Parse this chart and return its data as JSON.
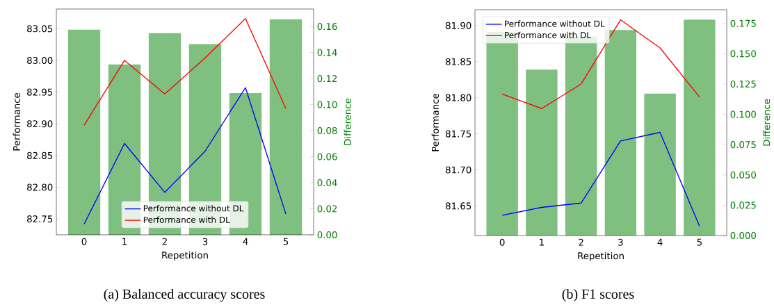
{
  "chart_data": [
    {
      "type": "line",
      "categories": [
        "0",
        "1",
        "2",
        "3",
        "4",
        "5"
      ],
      "xlabel": "Repetition",
      "ylabel": "Performance",
      "y2label": "Difference",
      "ylim": [
        82.725,
        83.081
      ],
      "yticks": [
        {
          "value": 82.75,
          "label": "82.75"
        },
        {
          "value": 82.8,
          "label": "82.80"
        },
        {
          "value": 82.85,
          "label": "82.85"
        },
        {
          "value": 82.9,
          "label": "82.90"
        },
        {
          "value": 82.95,
          "label": "82.95"
        },
        {
          "value": 83.0,
          "label": "83.00"
        },
        {
          "value": 83.05,
          "label": "83.05"
        }
      ],
      "y2lim": [
        0,
        0.1734
      ],
      "y2ticks": [
        {
          "value": 0,
          "label": "0.00"
        },
        {
          "value": 0.02,
          "label": "0.02"
        },
        {
          "value": 0.04,
          "label": "0.04"
        },
        {
          "value": 0.06,
          "label": "0.06"
        },
        {
          "value": 0.08,
          "label": "0.08"
        },
        {
          "value": 0.1,
          "label": "0.10"
        },
        {
          "value": 0.12,
          "label": "0.12"
        },
        {
          "value": 0.14,
          "label": "0.14"
        },
        {
          "value": 0.16,
          "label": "0.16"
        }
      ],
      "legend": "bottom",
      "annotations": [
        "(a) Balanced accuracy scores"
      ],
      "series": [
        {
          "type": "bar",
          "axis": "y2",
          "color": "#7fbf7f",
          "values": [
            0.1575,
            0.1308,
            0.1548,
            0.1465,
            0.1089,
            0.1655
          ]
        },
        {
          "name": "Performance without DL",
          "color": "#0000ff",
          "values": [
            82.742,
            82.869,
            82.792,
            82.857,
            82.957,
            82.758
          ]
        },
        {
          "name": "Performance with DL",
          "color": "#ff0000",
          "values": [
            82.898,
            83.0,
            82.947,
            83.004,
            83.066,
            82.924
          ]
        }
      ]
    },
    {
      "type": "line",
      "categories": [
        "0",
        "1",
        "2",
        "3",
        "4",
        "5"
      ],
      "xlabel": "Repetition",
      "ylabel": "Performance",
      "y2label": "Difference",
      "ylim": [
        81.609,
        81.922
      ],
      "yticks": [
        {
          "value": 81.65,
          "label": "81.65"
        },
        {
          "value": 81.7,
          "label": "81.70"
        },
        {
          "value": 81.75,
          "label": "81.75"
        },
        {
          "value": 81.8,
          "label": "81.80"
        },
        {
          "value": 81.85,
          "label": "81.85"
        },
        {
          "value": 81.9,
          "label": "81.90"
        }
      ],
      "y2lim": [
        0,
        0.1863
      ],
      "y2ticks": [
        {
          "value": 0,
          "label": "0.000"
        },
        {
          "value": 0.025,
          "label": "0.025"
        },
        {
          "value": 0.05,
          "label": "0.050"
        },
        {
          "value": 0.075,
          "label": "0.075"
        },
        {
          "value": 0.1,
          "label": "0.100"
        },
        {
          "value": 0.125,
          "label": "0.125"
        },
        {
          "value": 0.15,
          "label": "0.150"
        },
        {
          "value": 0.175,
          "label": "0.175"
        }
      ],
      "legend": "top left",
      "annotations": [
        "(b) F1 scores"
      ],
      "series": [
        {
          "type": "bar",
          "axis": "y2",
          "color": "#7fbf7f",
          "values": [
            0.168,
            0.1369,
            0.1642,
            0.1695,
            0.1171,
            0.1781
          ]
        },
        {
          "name": "Performance without DL",
          "color": "#0000ff",
          "values": [
            81.637,
            81.648,
            81.654,
            81.74,
            81.752,
            81.622
          ]
        },
        {
          "name": "Performance with DL",
          "color": "#ff0000",
          "values": [
            81.805,
            81.785,
            81.819,
            81.908,
            81.869,
            81.801
          ]
        }
      ]
    }
  ]
}
